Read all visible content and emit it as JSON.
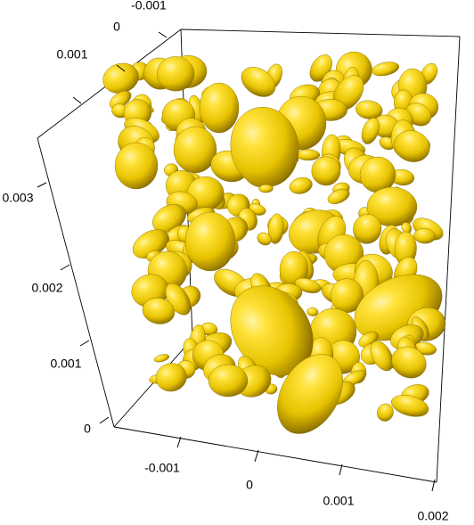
{
  "chart_data": {
    "type": "scatter",
    "subtype": "3d-ellipsoid-packing",
    "title": "",
    "fill_color": "#e6c300",
    "highlight_color": "#fff3a0",
    "shadow_color": "#6b5400",
    "edge_color": "#000000",
    "background": "#ffffff",
    "grid": false,
    "axes": {
      "x": {
        "label": "",
        "ticks": [
          {
            "value": -0.001,
            "label": "-0.001"
          },
          {
            "value": 0,
            "label": "0"
          },
          {
            "value": 0.001,
            "label": "0.001"
          },
          {
            "value": 0.002,
            "label": "0.002"
          }
        ]
      },
      "y": {
        "label": "",
        "ticks": [
          {
            "value": -0.001,
            "label": "-0.001"
          },
          {
            "value": 0,
            "label": "0"
          },
          {
            "value": 0.001,
            "label": "0.001"
          }
        ]
      },
      "z": {
        "label": "",
        "ticks": [
          {
            "value": 0,
            "label": "0"
          },
          {
            "value": 0.001,
            "label": "0.001"
          },
          {
            "value": 0.002,
            "label": "0.002"
          },
          {
            "value": 0.003,
            "label": "0.003"
          }
        ]
      }
    }
  }
}
